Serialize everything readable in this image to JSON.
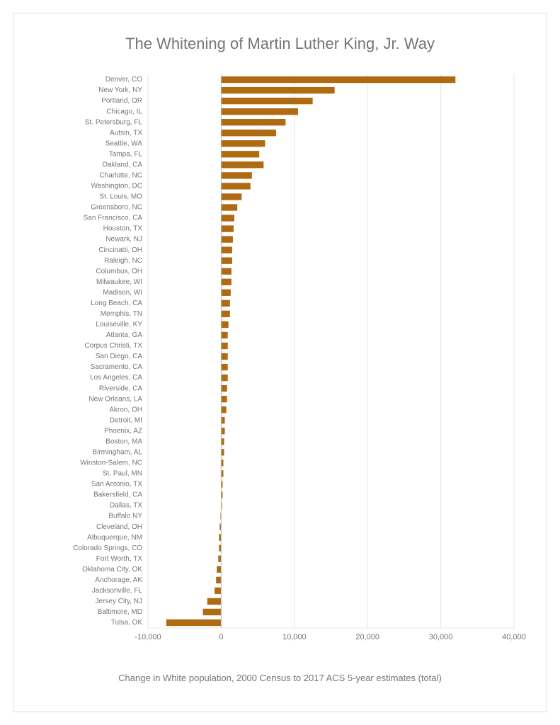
{
  "chart": {
    "type": "bar-horizontal",
    "title": "The Whitening of Martin Luther King, Jr. Way",
    "xaxis_label": "Change in White population, 2000 Census to 2017 ACS 5-year estimates (total)",
    "xlim": [
      -10000,
      40000
    ],
    "xtick_step": 10000,
    "xtick_labels": [
      "-10,000",
      "0",
      "10,000",
      "20,000",
      "30,000",
      "40,000"
    ],
    "bar_color": "#b06a11",
    "background_color": "#ffffff",
    "grid_color": "#e6e6e6",
    "border_color": "#dcdcdc",
    "title_color": "#757575",
    "label_color": "#757575",
    "title_fontsize": 22,
    "ylabel_fontsize": 10,
    "xlabel_fontsize": 11,
    "data": [
      {
        "city": "Denver, CO",
        "value": 32000
      },
      {
        "city": "New York, NY",
        "value": 15500
      },
      {
        "city": "Portland, OR",
        "value": 12500
      },
      {
        "city": "Chicago, IL",
        "value": 10500
      },
      {
        "city": "St. Petersburg, FL",
        "value": 8800
      },
      {
        "city": "Autsin, TX",
        "value": 7500
      },
      {
        "city": "Seattle, WA",
        "value": 6000
      },
      {
        "city": "Tampa, FL",
        "value": 5200
      },
      {
        "city": "Oakland, CA",
        "value": 5800
      },
      {
        "city": "Charlotte, NC",
        "value": 4200
      },
      {
        "city": "Washington, DC",
        "value": 4000
      },
      {
        "city": "St. Louis, MO",
        "value": 2800
      },
      {
        "city": "Greensboro, NC",
        "value": 2200
      },
      {
        "city": "San Francisco, CA",
        "value": 1800
      },
      {
        "city": "Houston, TX",
        "value": 1700
      },
      {
        "city": "Newark, NJ",
        "value": 1600
      },
      {
        "city": "Cincinatti, OH",
        "value": 1500
      },
      {
        "city": "Raleigh, NC",
        "value": 1500
      },
      {
        "city": "Columbus, OH",
        "value": 1400
      },
      {
        "city": "Milwaukee, WI",
        "value": 1400
      },
      {
        "city": "Madison, WI",
        "value": 1300
      },
      {
        "city": "Long Beach, CA",
        "value": 1200
      },
      {
        "city": "Memphis, TN",
        "value": 1200
      },
      {
        "city": "Louiseville, KY",
        "value": 1000
      },
      {
        "city": "Atlanta, GA",
        "value": 900
      },
      {
        "city": "Corpus Christi, TX",
        "value": 900
      },
      {
        "city": "San Diego, CA",
        "value": 900
      },
      {
        "city": "Sacramento, CA",
        "value": 900
      },
      {
        "city": "Los Angeles, CA",
        "value": 900
      },
      {
        "city": "Riverside, CA",
        "value": 800
      },
      {
        "city": "New Orleans, LA",
        "value": 800
      },
      {
        "city": "Akron, OH",
        "value": 700
      },
      {
        "city": "Detroit, MI",
        "value": 500
      },
      {
        "city": "Phoenix, AZ",
        "value": 500
      },
      {
        "city": "Boston, MA",
        "value": 400
      },
      {
        "city": "Birmingham, AL",
        "value": 400
      },
      {
        "city": "Winston-Salem, NC",
        "value": 300
      },
      {
        "city": "St. Paul, MN",
        "value": 300
      },
      {
        "city": "San Antonio, TX",
        "value": 200
      },
      {
        "city": "Bakersfield, CA",
        "value": 200
      },
      {
        "city": "Dallas, TX",
        "value": 100
      },
      {
        "city": "Buffalo NY",
        "value": -100
      },
      {
        "city": "Cleveland, OH",
        "value": -200
      },
      {
        "city": "Albuquerque, NM",
        "value": -300
      },
      {
        "city": "Colorado Springs, CO",
        "value": -300
      },
      {
        "city": "Fort Worth, TX",
        "value": -400
      },
      {
        "city": "Oklahoma City, OK",
        "value": -600
      },
      {
        "city": "Anchorage, AK",
        "value": -700
      },
      {
        "city": "Jacksonville, FL",
        "value": -900
      },
      {
        "city": "Jersey City, NJ",
        "value": -1900
      },
      {
        "city": "Baltimore, MD",
        "value": -2500
      },
      {
        "city": "Tulsa, OK",
        "value": -7500
      }
    ]
  }
}
